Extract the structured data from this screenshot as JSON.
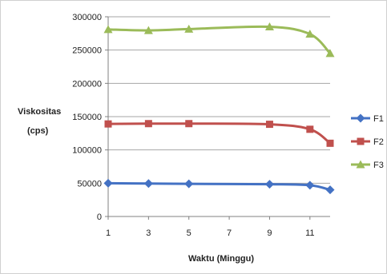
{
  "chart_data": {
    "type": "line",
    "title": "",
    "xlabel": "Waktu (Minggu)",
    "ylabel_line1": "Viskositas",
    "ylabel_line2": "(cps)",
    "xlim": [
      1,
      12
    ],
    "ylim": [
      0,
      300000
    ],
    "x_ticks": [
      1,
      3,
      5,
      7,
      9,
      11
    ],
    "y_ticks": [
      0,
      50000,
      100000,
      150000,
      200000,
      250000,
      300000
    ],
    "legend_position": "right",
    "grid": {
      "horizontal": true,
      "vertical": false
    },
    "x": [
      1,
      3,
      5,
      9,
      11,
      12
    ],
    "series": [
      {
        "name": "F1",
        "color": "#4472c4",
        "marker": "diamond",
        "values": [
          50000,
          49500,
          49000,
          48500,
          47000,
          40000
        ]
      },
      {
        "name": "F2",
        "color": "#c0504d",
        "marker": "square",
        "values": [
          139000,
          139500,
          139500,
          138500,
          131000,
          110000
        ]
      },
      {
        "name": "F3",
        "color": "#9bbb59",
        "marker": "triangle",
        "values": [
          281000,
          279500,
          281500,
          285000,
          274000,
          245000
        ]
      }
    ]
  }
}
